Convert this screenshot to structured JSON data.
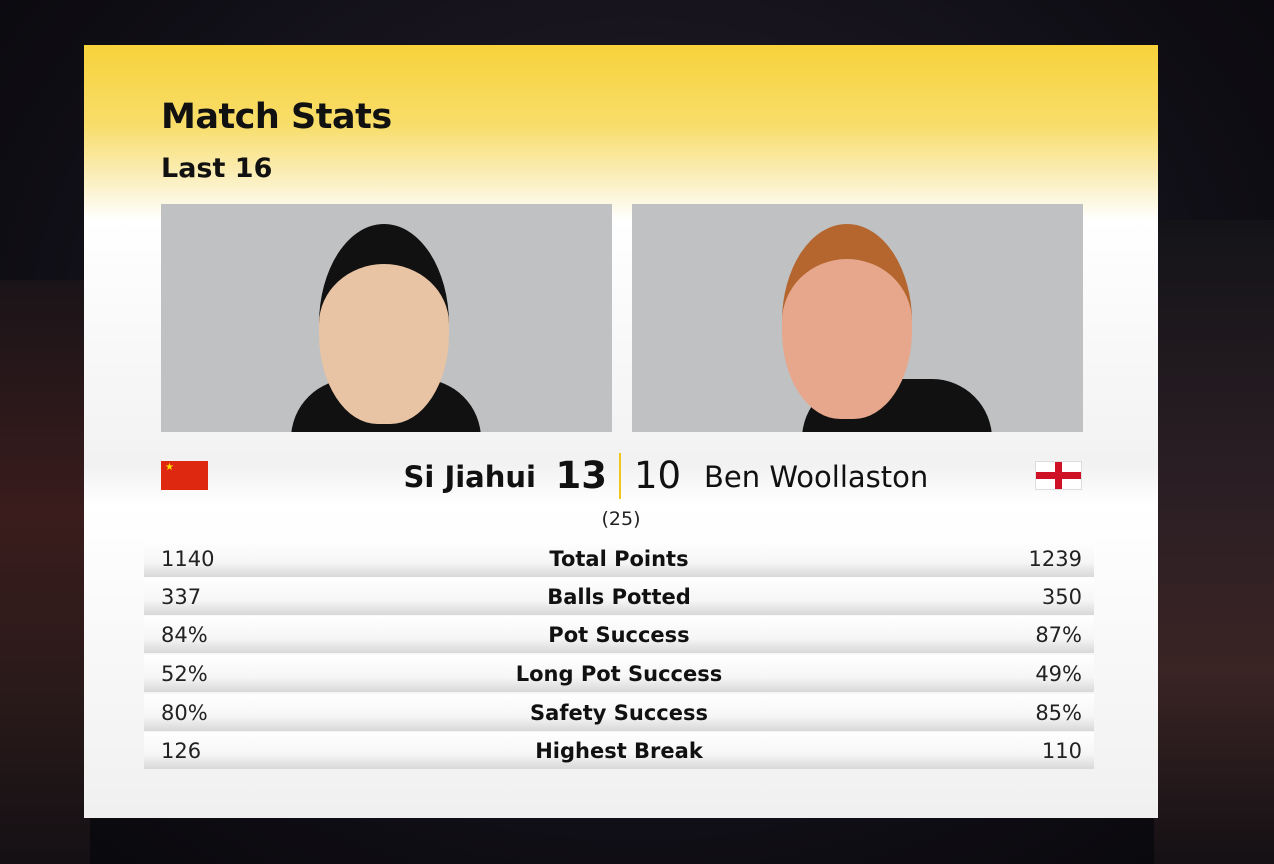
{
  "header": {
    "title": "Match Stats",
    "subtitle": "Last 16"
  },
  "colors": {
    "accent": "#f7d23a",
    "divider": "#f0c61e"
  },
  "players": [
    {
      "name": "Si Jiahui",
      "score": "13",
      "flag": "china-flag-icon"
    },
    {
      "name": "Ben Woollaston",
      "score": "10",
      "flag": "england-flag-icon"
    }
  ],
  "frames": "(25)",
  "stats": [
    {
      "left": "1140",
      "label": "Total Points",
      "right": "1239"
    },
    {
      "left": "337",
      "label": "Balls Potted",
      "right": "350"
    },
    {
      "left": "84%",
      "label": "Pot Success",
      "right": "87%"
    },
    {
      "left": "52%",
      "label": "Long Pot Success",
      "right": "49%"
    },
    {
      "left": "80%",
      "label": "Safety Success",
      "right": "85%"
    },
    {
      "left": "126",
      "label": "Highest Break",
      "right": "110"
    }
  ]
}
